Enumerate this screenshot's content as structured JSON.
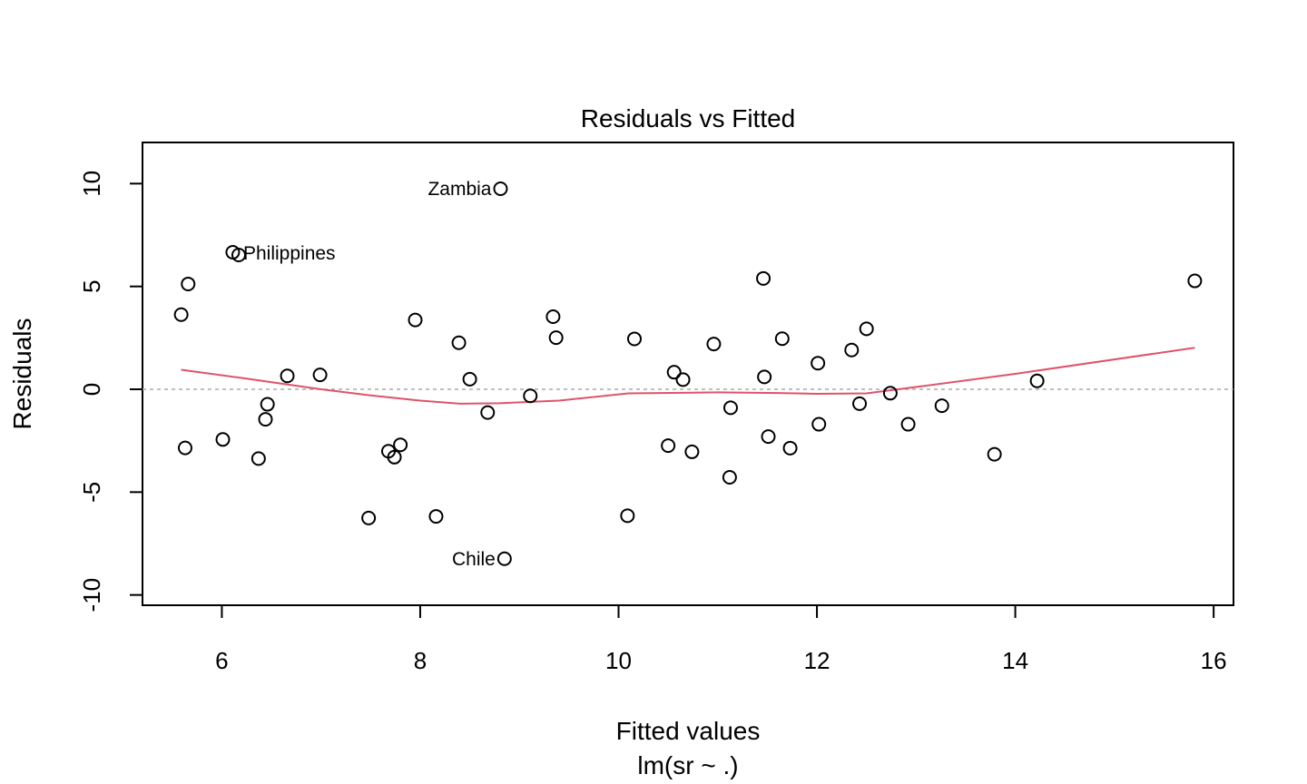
{
  "chart_data": {
    "type": "scatter",
    "title": "Residuals vs Fitted",
    "xlabel": "Fitted values",
    "subtitle": "lm(sr ~ .)",
    "ylabel": "Residuals",
    "xlim": [
      5.2,
      16.2
    ],
    "ylim": [
      -10.5,
      12
    ],
    "xticks": [
      6,
      8,
      10,
      12,
      14,
      16
    ],
    "yticks": [
      -10,
      -5,
      0,
      5,
      10
    ],
    "xtick_labels": [
      "6",
      "8",
      "10",
      "12",
      "14",
      "16"
    ],
    "ytick_labels": [
      "-10",
      "-5",
      "0",
      "5",
      "10"
    ],
    "reference_line_y": 0,
    "colors": {
      "points": "#000000",
      "smooth": "#DF536B",
      "reference": "#aaaaaa",
      "frame": "#000000"
    },
    "points": [
      {
        "x": 5.59,
        "y": 3.63
      },
      {
        "x": 5.63,
        "y": -2.85
      },
      {
        "x": 5.66,
        "y": 5.12
      },
      {
        "x": 6.01,
        "y": -2.44
      },
      {
        "x": 6.11,
        "y": 6.66
      },
      {
        "x": 6.17,
        "y": 6.53
      },
      {
        "x": 6.37,
        "y": -3.37
      },
      {
        "x": 6.44,
        "y": -1.46
      },
      {
        "x": 6.46,
        "y": -0.73
      },
      {
        "x": 6.66,
        "y": 0.65
      },
      {
        "x": 6.99,
        "y": 0.7
      },
      {
        "x": 7.48,
        "y": -6.26
      },
      {
        "x": 7.68,
        "y": -3.01
      },
      {
        "x": 7.74,
        "y": -3.3
      },
      {
        "x": 7.8,
        "y": -2.7
      },
      {
        "x": 7.95,
        "y": 3.37
      },
      {
        "x": 8.16,
        "y": -6.18
      },
      {
        "x": 8.39,
        "y": 2.26
      },
      {
        "x": 8.5,
        "y": 0.49
      },
      {
        "x": 8.68,
        "y": -1.13
      },
      {
        "x": 8.81,
        "y": 9.75
      },
      {
        "x": 8.85,
        "y": -8.24
      },
      {
        "x": 9.11,
        "y": -0.32
      },
      {
        "x": 9.34,
        "y": 3.53
      },
      {
        "x": 9.37,
        "y": 2.51
      },
      {
        "x": 10.09,
        "y": -6.15
      },
      {
        "x": 10.16,
        "y": 2.45
      },
      {
        "x": 10.5,
        "y": -2.74
      },
      {
        "x": 10.56,
        "y": 0.83
      },
      {
        "x": 10.65,
        "y": 0.47
      },
      {
        "x": 10.74,
        "y": -3.04
      },
      {
        "x": 10.96,
        "y": 2.2
      },
      {
        "x": 11.12,
        "y": -4.28
      },
      {
        "x": 11.13,
        "y": -0.9
      },
      {
        "x": 11.46,
        "y": 5.39
      },
      {
        "x": 11.47,
        "y": 0.6
      },
      {
        "x": 11.51,
        "y": -2.3
      },
      {
        "x": 11.65,
        "y": 2.46
      },
      {
        "x": 11.73,
        "y": -2.86
      },
      {
        "x": 12.01,
        "y": 1.27
      },
      {
        "x": 12.02,
        "y": -1.7
      },
      {
        "x": 12.35,
        "y": 1.91
      },
      {
        "x": 12.43,
        "y": -0.7
      },
      {
        "x": 12.5,
        "y": 2.94
      },
      {
        "x": 12.74,
        "y": -0.19
      },
      {
        "x": 12.92,
        "y": -1.7
      },
      {
        "x": 13.26,
        "y": -0.8
      },
      {
        "x": 13.79,
        "y": -3.16
      },
      {
        "x": 14.22,
        "y": 0.41
      },
      {
        "x": 15.81,
        "y": 5.27
      }
    ],
    "labels": [
      {
        "x": 8.81,
        "y": 9.75,
        "text": "Zambia",
        "side": "left"
      },
      {
        "x": 6.17,
        "y": 6.53,
        "text": "Philippines",
        "side": "right"
      },
      {
        "x": 8.85,
        "y": -8.24,
        "text": "Chile",
        "side": "left"
      }
    ],
    "smooth": {
      "name": "",
      "x": [
        5.59,
        6.2,
        7.0,
        7.5,
        8.0,
        8.4,
        8.8,
        9.4,
        10.1,
        11.0,
        11.6,
        12.0,
        12.5,
        12.9,
        14.0,
        15.81
      ],
      "y": [
        0.95,
        0.55,
        0.0,
        -0.3,
        -0.55,
        -0.7,
        -0.68,
        -0.55,
        -0.2,
        -0.15,
        -0.18,
        -0.22,
        -0.2,
        0.05,
        0.75,
        2.02
      ]
    }
  }
}
